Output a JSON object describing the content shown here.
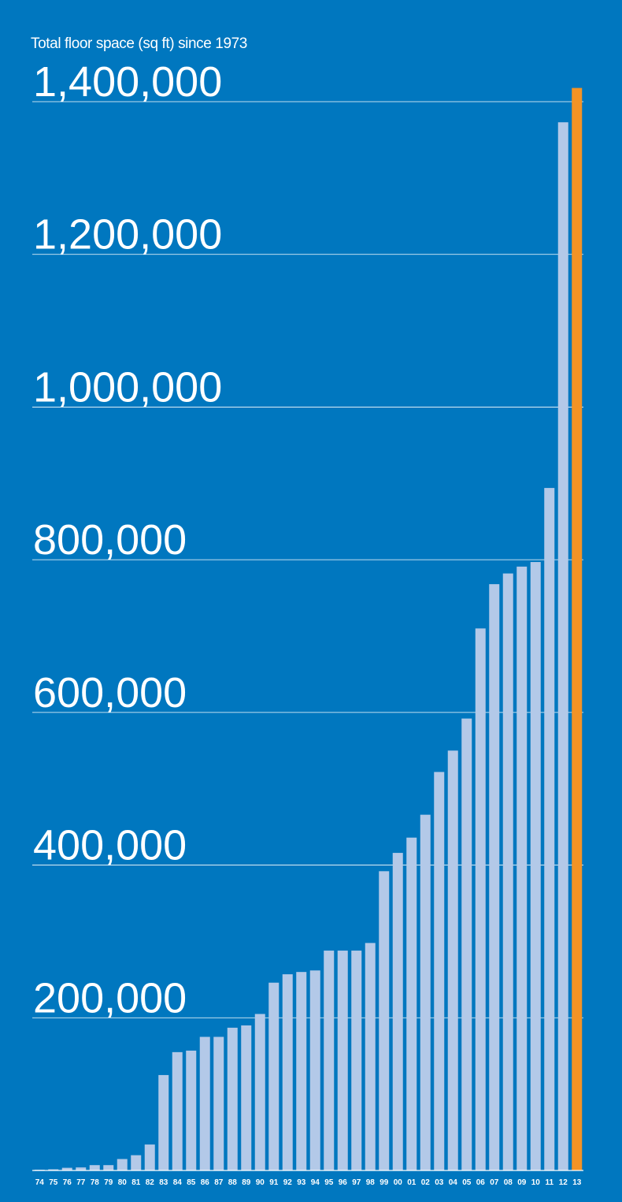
{
  "chart_data": {
    "type": "bar",
    "title": "Total floor space (sq ft) since 1973",
    "xlabel": "",
    "ylabel": "",
    "ylim": [
      0,
      1400000
    ],
    "yticks": [
      200000,
      400000,
      600000,
      800000,
      1000000,
      1200000,
      1400000
    ],
    "ytick_labels": [
      "200,000",
      "400,000",
      "600,000",
      "800,000",
      "1,000,000",
      "1,200,000",
      "1,400,000"
    ],
    "grid": true,
    "legend": "none",
    "categories": [
      "74",
      "75",
      "76",
      "77",
      "78",
      "79",
      "80",
      "81",
      "82",
      "83",
      "84",
      "85",
      "86",
      "87",
      "88",
      "89",
      "90",
      "91",
      "92",
      "93",
      "94",
      "95",
      "96",
      "97",
      "98",
      "99",
      "00",
      "01",
      "02",
      "03",
      "04",
      "05",
      "06",
      "07",
      "08",
      "09",
      "10",
      "11",
      "12",
      "13"
    ],
    "values": [
      1000,
      1500,
      3500,
      4000,
      7000,
      7000,
      15000,
      20000,
      34000,
      125000,
      155000,
      157000,
      175000,
      175000,
      187000,
      190000,
      205000,
      246000,
      257000,
      260000,
      262000,
      288000,
      288000,
      288000,
      298000,
      392000,
      416000,
      436000,
      466000,
      522000,
      550000,
      592000,
      710000,
      768000,
      782000,
      791000,
      797000,
      894000,
      1373000,
      1418000
    ],
    "highlight_index": 39,
    "colors": {
      "background": "#0077bf",
      "bar": "#b3c9e8",
      "highlight": "#f39325",
      "grid": "#ffffff",
      "text": "#ffffff"
    }
  }
}
